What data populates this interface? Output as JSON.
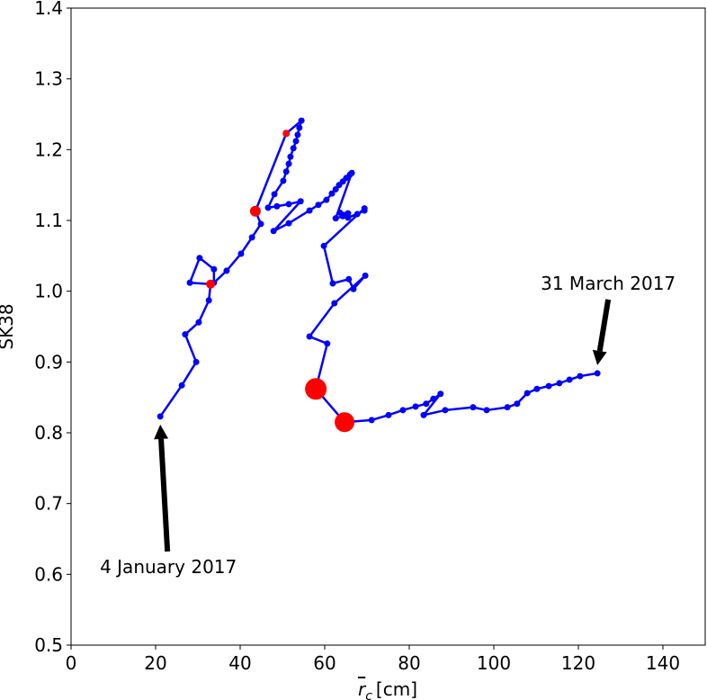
{
  "chart_data": {
    "type": "line",
    "xlabel": {
      "symbol": "r",
      "subscript": "c",
      "unit": "[cm]"
    },
    "ylabel": "SK38",
    "xlim": [
      0,
      150
    ],
    "ylim": [
      0.5,
      1.4
    ],
    "xticks": [
      0,
      20,
      40,
      60,
      80,
      100,
      120,
      140
    ],
    "yticks": [
      0.5,
      0.6,
      0.7,
      0.8,
      0.9,
      {
        "value": 1,
        "label": "1.0"
      },
      1.1,
      1.2,
      1.3,
      1.4
    ],
    "grid": false,
    "series": [
      {
        "color": "#0000ff",
        "x": [
          21.1,
          26.2,
          29.6,
          27.0,
          30.2,
          32.6,
          33.0,
          28.1,
          30.4,
          33.8,
          33.8,
          36.8,
          40.2,
          42.8,
          44.9,
          43.6,
          50.9,
          54.5,
          54.0,
          53.6,
          53.2,
          52.6,
          51.9,
          51.5,
          50.9,
          50.2,
          48.1,
          46.6,
          48.7,
          51.5,
          54.3,
          47.9,
          51.5,
          56.4,
          58.5,
          60.4,
          61.7,
          62.6,
          63.4,
          64.3,
          65.1,
          66.0,
          66.4,
          62.6,
          64.3,
          65.5,
          63.6,
          65.5,
          67.7,
          69.4,
          69.4,
          59.8,
          61.9,
          65.7,
          66.8,
          69.6,
          62.3,
          56.4,
          60.6,
          57.9,
          64.7,
          71.1,
          75.1,
          78.5,
          81.5,
          84.0,
          85.7,
          87.4,
          83.4,
          88.5,
          95.1,
          98.3,
          103.2,
          105.5,
          107.9,
          110.2,
          113.0,
          115.5,
          117.9,
          120.4,
          124.5
        ],
        "values": [
          0.823,
          0.867,
          0.9,
          0.939,
          0.956,
          0.987,
          1.01,
          1.012,
          1.047,
          1.031,
          1.012,
          1.029,
          1.053,
          1.076,
          1.095,
          1.113,
          1.223,
          1.241,
          1.231,
          1.221,
          1.212,
          1.202,
          1.19,
          1.18,
          1.169,
          1.156,
          1.137,
          1.118,
          1.12,
          1.123,
          1.127,
          1.085,
          1.096,
          1.114,
          1.122,
          1.129,
          1.138,
          1.144,
          1.15,
          1.155,
          1.16,
          1.165,
          1.167,
          1.103,
          1.106,
          1.11,
          1.111,
          1.104,
          1.109,
          1.114,
          1.117,
          1.064,
          1.011,
          1.017,
          1.003,
          1.022,
          0.983,
          0.936,
          0.926,
          0.862,
          0.815,
          0.818,
          0.825,
          0.832,
          0.837,
          0.841,
          0.848,
          0.855,
          0.825,
          0.832,
          0.836,
          0.832,
          0.836,
          0.841,
          0.856,
          0.862,
          0.866,
          0.87,
          0.875,
          0.88,
          0.884
        ]
      },
      {
        "color": "#ff0000",
        "x": [
          33.0,
          43.6,
          50.9,
          57.9,
          64.7
        ],
        "values": [
          1.01,
          1.113,
          1.223,
          0.862,
          0.815
        ],
        "sizes": [
          5,
          6,
          4,
          12,
          11
        ]
      }
    ],
    "annotations": [
      {
        "text": "4 January 2017",
        "x": 21.1,
        "y": 0.823
      },
      {
        "text": "31 March 2017",
        "x": 124.5,
        "y": 0.884
      }
    ]
  }
}
